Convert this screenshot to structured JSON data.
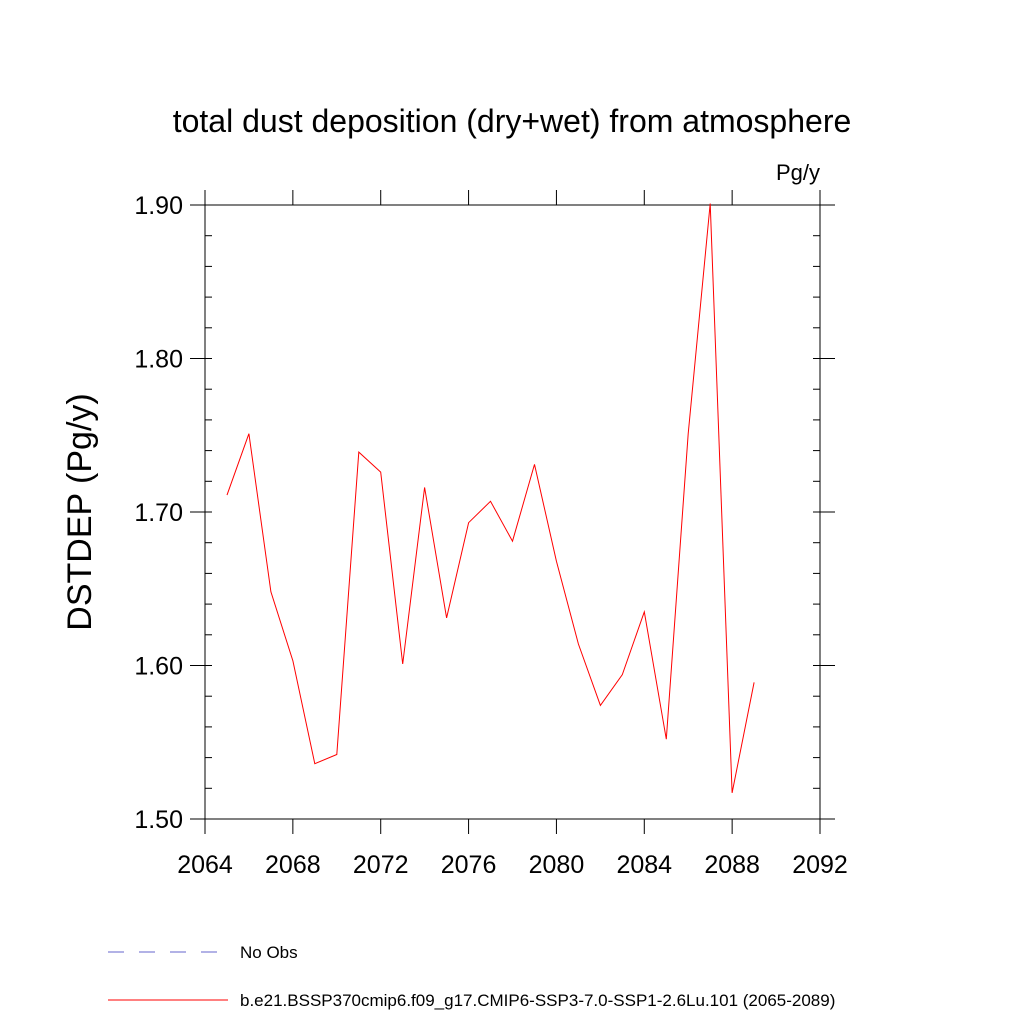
{
  "chart_data": {
    "type": "line",
    "title": "total dust deposition (dry+wet) from atmosphere",
    "units_label": "Pg/y",
    "ylabel": "DSTDEP  (Pg/y)",
    "xlabel": "",
    "xlim": [
      2064,
      2092
    ],
    "ylim": [
      1.5,
      1.9
    ],
    "x_ticks": [
      2064,
      2068,
      2072,
      2076,
      2080,
      2084,
      2088,
      2092
    ],
    "x_tick_labels": [
      "2064",
      "2068",
      "2072",
      "2076",
      "2080",
      "2084",
      "2088",
      "2092"
    ],
    "y_ticks": [
      1.5,
      1.6,
      1.7,
      1.8,
      1.9
    ],
    "y_tick_labels": [
      "1.50",
      "1.60",
      "1.70",
      "1.80",
      "1.90"
    ],
    "grid": false,
    "legend_position": "bottom",
    "series": [
      {
        "name": "b.e21.BSSP370cmip6.f09_g17.CMIP6-SSP3-7.0-SSP1-2.6Lu.101 (2065-2089)",
        "color": "#ff0000",
        "style": "solid",
        "x": [
          2065,
          2066,
          2067,
          2068,
          2069,
          2070,
          2071,
          2072,
          2073,
          2074,
          2075,
          2076,
          2077,
          2078,
          2079,
          2080,
          2081,
          2082,
          2083,
          2084,
          2085,
          2086,
          2087,
          2088,
          2089
        ],
        "values": [
          1.711,
          1.751,
          1.648,
          1.603,
          1.536,
          1.542,
          1.739,
          1.726,
          1.601,
          1.716,
          1.631,
          1.693,
          1.707,
          1.681,
          1.731,
          1.668,
          1.614,
          1.574,
          1.594,
          1.635,
          1.552,
          1.751,
          1.901,
          1.517,
          1.589
        ]
      }
    ],
    "legend": [
      {
        "label": "No Obs",
        "color": "#6666cc",
        "style": "dashed"
      },
      {
        "label": "b.e21.BSSP370cmip6.f09_g17.CMIP6-SSP3-7.0-SSP1-2.6Lu.101 (2065-2089)",
        "color": "#ff0000",
        "style": "solid"
      }
    ]
  }
}
